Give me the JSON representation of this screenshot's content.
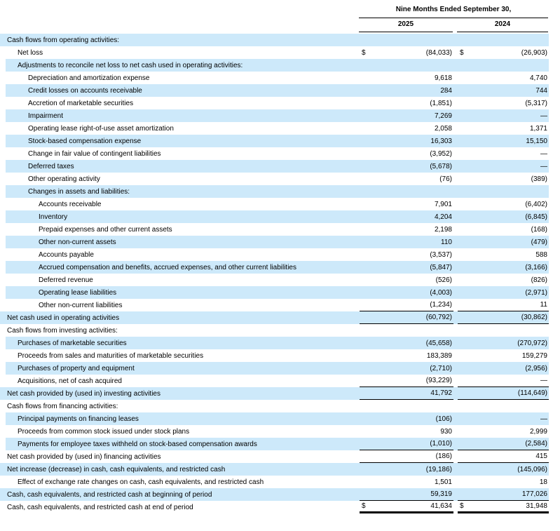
{
  "table": {
    "currency_symbol": "$",
    "colors": {
      "row_highlight": "#cde9fa",
      "rule": "#000000",
      "text": "#000000"
    },
    "header": {
      "period": "Nine Months Ended September 30,",
      "col_2025": "2025",
      "col_2024": "2024"
    },
    "rows": [
      {
        "label": "Cash flows from operating activities:",
        "indent": 0,
        "shaded": true,
        "dollar": false,
        "v2025": "",
        "v2024": "",
        "rule": "none"
      },
      {
        "label": "Net loss",
        "indent": 1,
        "shaded": false,
        "dollar": true,
        "v2025": "(84,033)",
        "v2024": "(26,903)",
        "rule": "none"
      },
      {
        "label": "Adjustments to reconcile net loss to net cash used in operating activities:",
        "indent": 1,
        "shaded": true,
        "dollar": false,
        "v2025": "",
        "v2024": "",
        "rule": "none"
      },
      {
        "label": "Depreciation and amortization expense",
        "indent": 2,
        "shaded": false,
        "dollar": false,
        "v2025": "9,618",
        "v2024": "4,740",
        "rule": "none"
      },
      {
        "label": "Credit losses on accounts receivable",
        "indent": 2,
        "shaded": true,
        "dollar": false,
        "v2025": "284",
        "v2024": "744",
        "rule": "none"
      },
      {
        "label": "Accretion of marketable securities",
        "indent": 2,
        "shaded": false,
        "dollar": false,
        "v2025": "(1,851)",
        "v2024": "(5,317)",
        "rule": "none"
      },
      {
        "label": "Impairment",
        "indent": 2,
        "shaded": true,
        "dollar": false,
        "v2025": "7,269",
        "v2024": "—",
        "rule": "none"
      },
      {
        "label": "Operating lease right-of-use asset amortization",
        "indent": 2,
        "shaded": false,
        "dollar": false,
        "v2025": "2,058",
        "v2024": "1,371",
        "rule": "none"
      },
      {
        "label": "Stock-based compensation expense",
        "indent": 2,
        "shaded": true,
        "dollar": false,
        "v2025": "16,303",
        "v2024": "15,150",
        "rule": "none"
      },
      {
        "label": "Change in fair value of contingent liabilities",
        "indent": 2,
        "shaded": false,
        "dollar": false,
        "v2025": "(3,952)",
        "v2024": "—",
        "rule": "none"
      },
      {
        "label": "Deferred taxes",
        "indent": 2,
        "shaded": true,
        "dollar": false,
        "v2025": "(5,678)",
        "v2024": "—",
        "rule": "none"
      },
      {
        "label": "Other operating activity",
        "indent": 2,
        "shaded": false,
        "dollar": false,
        "v2025": "(76)",
        "v2024": "(389)",
        "rule": "none"
      },
      {
        "label": "Changes in assets and liabilities:",
        "indent": 2,
        "shaded": true,
        "dollar": false,
        "v2025": "",
        "v2024": "",
        "rule": "none"
      },
      {
        "label": "Accounts receivable",
        "indent": 3,
        "shaded": false,
        "dollar": false,
        "v2025": "7,901",
        "v2024": "(6,402)",
        "rule": "none"
      },
      {
        "label": "Inventory",
        "indent": 3,
        "shaded": true,
        "dollar": false,
        "v2025": "4,204",
        "v2024": "(6,845)",
        "rule": "none"
      },
      {
        "label": "Prepaid expenses and other current assets",
        "indent": 3,
        "shaded": false,
        "dollar": false,
        "v2025": "2,198",
        "v2024": "(168)",
        "rule": "none"
      },
      {
        "label": "Other non-current assets",
        "indent": 3,
        "shaded": true,
        "dollar": false,
        "v2025": "110",
        "v2024": "(479)",
        "rule": "none"
      },
      {
        "label": "Accounts payable",
        "indent": 3,
        "shaded": false,
        "dollar": false,
        "v2025": "(3,537)",
        "v2024": "588",
        "rule": "none"
      },
      {
        "label": "Accrued compensation and benefits, accrued expenses, and other current liabilities",
        "indent": 3,
        "shaded": true,
        "dollar": false,
        "v2025": "(5,847)",
        "v2024": "(3,166)",
        "rule": "none"
      },
      {
        "label": "Deferred revenue",
        "indent": 3,
        "shaded": false,
        "dollar": false,
        "v2025": "(526)",
        "v2024": "(826)",
        "rule": "none"
      },
      {
        "label": "Operating lease liabilities",
        "indent": 3,
        "shaded": true,
        "dollar": false,
        "v2025": "(4,003)",
        "v2024": "(2,971)",
        "rule": "none"
      },
      {
        "label": "Other non-current liabilities",
        "indent": 3,
        "shaded": false,
        "dollar": false,
        "v2025": "(1,234)",
        "v2024": "11",
        "rule": "single"
      },
      {
        "label": "Net cash used in operating activities",
        "indent": 0,
        "shaded": true,
        "dollar": false,
        "v2025": "(60,792)",
        "v2024": "(30,862)",
        "rule": "single"
      },
      {
        "label": "Cash flows from investing activities:",
        "indent": 0,
        "shaded": false,
        "dollar": false,
        "v2025": "",
        "v2024": "",
        "rule": "none"
      },
      {
        "label": "Purchases of marketable securities",
        "indent": 1,
        "shaded": true,
        "dollar": false,
        "v2025": "(45,658)",
        "v2024": "(270,972)",
        "rule": "none"
      },
      {
        "label": "Proceeds from sales and maturities of marketable securities",
        "indent": 1,
        "shaded": false,
        "dollar": false,
        "v2025": "183,389",
        "v2024": "159,279",
        "rule": "none"
      },
      {
        "label": "Purchases of property and equipment",
        "indent": 1,
        "shaded": true,
        "dollar": false,
        "v2025": "(2,710)",
        "v2024": "(2,956)",
        "rule": "none"
      },
      {
        "label": "Acquisitions, net of cash acquired",
        "indent": 1,
        "shaded": false,
        "dollar": false,
        "v2025": "(93,229)",
        "v2024": "—",
        "rule": "single"
      },
      {
        "label": "Net cash provided by (used in) investing activities",
        "indent": 0,
        "shaded": true,
        "dollar": false,
        "v2025": "41,792",
        "v2024": "(114,649)",
        "rule": "single"
      },
      {
        "label": "Cash flows from financing activities:",
        "indent": 0,
        "shaded": false,
        "dollar": false,
        "v2025": "",
        "v2024": "",
        "rule": "none"
      },
      {
        "label": "Principal payments on financing leases",
        "indent": 1,
        "shaded": true,
        "dollar": false,
        "v2025": "(106)",
        "v2024": "—",
        "rule": "none"
      },
      {
        "label": "Proceeds from common stock issued under stock plans",
        "indent": 1,
        "shaded": false,
        "dollar": false,
        "v2025": "930",
        "v2024": "2,999",
        "rule": "none"
      },
      {
        "label": "Payments for employee taxes withheld on stock-based compensation awards",
        "indent": 1,
        "shaded": true,
        "dollar": false,
        "v2025": "(1,010)",
        "v2024": "(2,584)",
        "rule": "single"
      },
      {
        "label": "Net cash provided by (used in) financing activities",
        "indent": 0,
        "shaded": false,
        "dollar": false,
        "v2025": "(186)",
        "v2024": "415",
        "rule": "single"
      },
      {
        "label": "Net increase (decrease) in cash, cash equivalents, and restricted cash",
        "indent": 0,
        "shaded": true,
        "dollar": false,
        "v2025": "(19,186)",
        "v2024": "(145,096)",
        "rule": "none"
      },
      {
        "label": "Effect of exchange rate changes on cash, cash equivalents, and restricted cash",
        "indent": 1,
        "shaded": false,
        "dollar": false,
        "v2025": "1,501",
        "v2024": "18",
        "rule": "none"
      },
      {
        "label": "Cash, cash equivalents, and restricted cash at beginning of period",
        "indent": 0,
        "shaded": true,
        "dollar": false,
        "v2025": "59,319",
        "v2024": "177,026",
        "rule": "single"
      },
      {
        "label": "Cash, cash equivalents, and restricted cash at end of period",
        "indent": 0,
        "shaded": false,
        "dollar": true,
        "v2025": "41,634",
        "v2024": "31,948",
        "rule": "thick"
      }
    ]
  }
}
